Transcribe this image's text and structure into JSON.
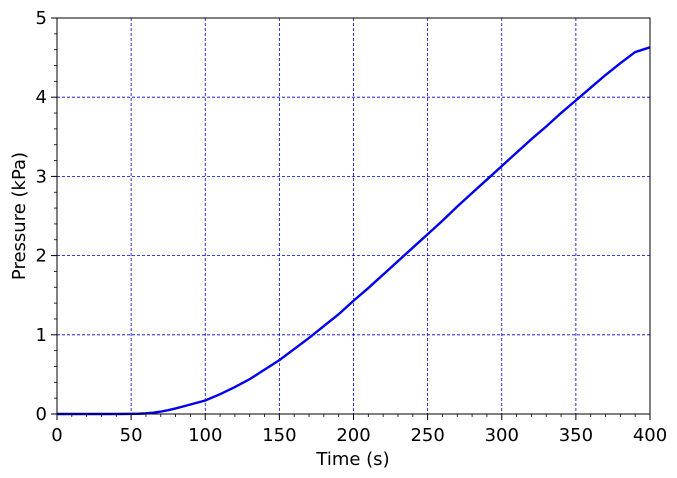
{
  "chart_data": {
    "type": "line",
    "title": "",
    "xlabel": "Time (s)",
    "ylabel": "Pressure (kPa)",
    "xlim": [
      0,
      400
    ],
    "ylim": [
      0,
      5
    ],
    "x_ticks": [
      0,
      50,
      100,
      150,
      200,
      250,
      300,
      350,
      400
    ],
    "y_ticks": [
      0,
      1,
      2,
      3,
      4,
      5
    ],
    "x_tick_labels": [
      "0",
      "50",
      "100",
      "150",
      "200",
      "250",
      "300",
      "350",
      "400"
    ],
    "y_tick_labels": [
      "0",
      "1",
      "2",
      "3",
      "4",
      "5"
    ],
    "grid": true,
    "legend": false,
    "series": [
      {
        "color": "#0000ee",
        "x": [
          0,
          20,
          40,
          55,
          60,
          65,
          70,
          75,
          80,
          85,
          90,
          95,
          100,
          110,
          120,
          130,
          140,
          150,
          160,
          170,
          180,
          190,
          200,
          210,
          220,
          230,
          240,
          250,
          260,
          270,
          280,
          290,
          300,
          310,
          320,
          330,
          340,
          350,
          360,
          370,
          380,
          390,
          400
        ],
        "y": [
          0,
          0,
          0,
          0.003,
          0.008,
          0.016,
          0.03,
          0.048,
          0.07,
          0.095,
          0.12,
          0.145,
          0.17,
          0.25,
          0.34,
          0.44,
          0.56,
          0.68,
          0.82,
          0.96,
          1.11,
          1.26,
          1.43,
          1.59,
          1.76,
          1.93,
          2.1,
          2.27,
          2.44,
          2.62,
          2.79,
          2.96,
          3.13,
          3.3,
          3.47,
          3.63,
          3.8,
          3.96,
          4.12,
          4.28,
          4.43,
          4.57,
          4.63
        ]
      }
    ]
  },
  "colors": {
    "grid": "#0000cc",
    "axis": "#000000",
    "line": "#0000ee"
  }
}
